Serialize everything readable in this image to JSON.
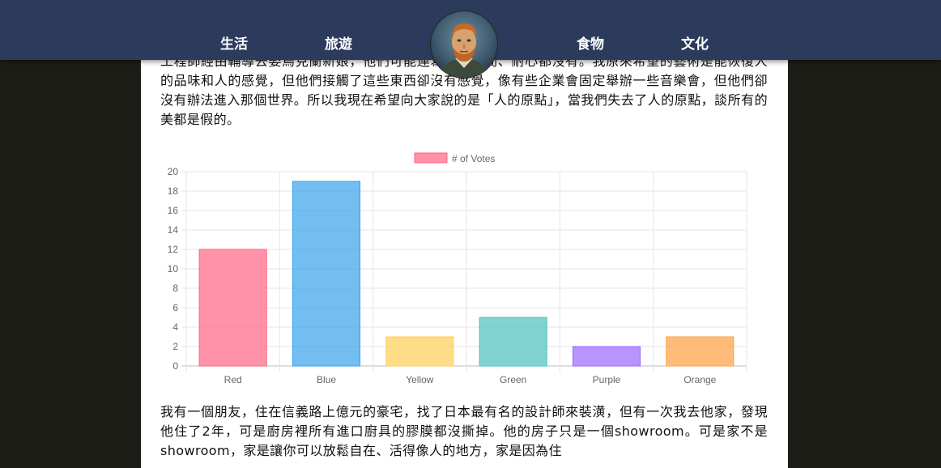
{
  "nav": {
    "items": [
      {
        "label": "生活"
      },
      {
        "label": "旅遊"
      },
      {
        "label": "食物"
      },
      {
        "label": "文化"
      }
    ]
  },
  "article": {
    "para1": "工程師經由輔導去娶烏克蘭新娘，他們可能連寫詩的時間、耐心都沒有。我原來希望的藝術是能恢復人的品味和人的感覺，但他們接觸了這些東西卻沒有感覺，像有些企業會固定舉辦一些音樂會，但他們卻沒有辦法進入那個世界。所以我現在希望向大家說的是「人的原點」，當我們失去了人的原點，談所有的美都是假的。",
    "para2": "我有一個朋友，住在信義路上億元的豪宅，找了日本最有名的設計師來裝潢，但有一次我去他家，發現他住了2年，可是廚房裡所有進口廚具的膠膜都沒撕掉。他的房子只是一個showroom。可是家不是showroom，家是讓你可以放鬆自在、活得像人的地方，家是因為住"
  },
  "chart_data": {
    "type": "bar",
    "categories": [
      "Red",
      "Blue",
      "Yellow",
      "Green",
      "Purple",
      "Orange"
    ],
    "series": [
      {
        "name": "# of Votes",
        "values": [
          12,
          19,
          3,
          5,
          2,
          3
        ],
        "fill_colors": [
          "#ff6384",
          "#36a2eb",
          "#ffce56",
          "#4bc0c0",
          "#9966ff",
          "#ff9f40"
        ]
      }
    ],
    "ylim": [
      0,
      20
    ],
    "yticks": [
      0,
      2,
      4,
      6,
      8,
      10,
      12,
      14,
      16,
      18,
      20
    ],
    "grid": true,
    "legend_position": "top"
  }
}
